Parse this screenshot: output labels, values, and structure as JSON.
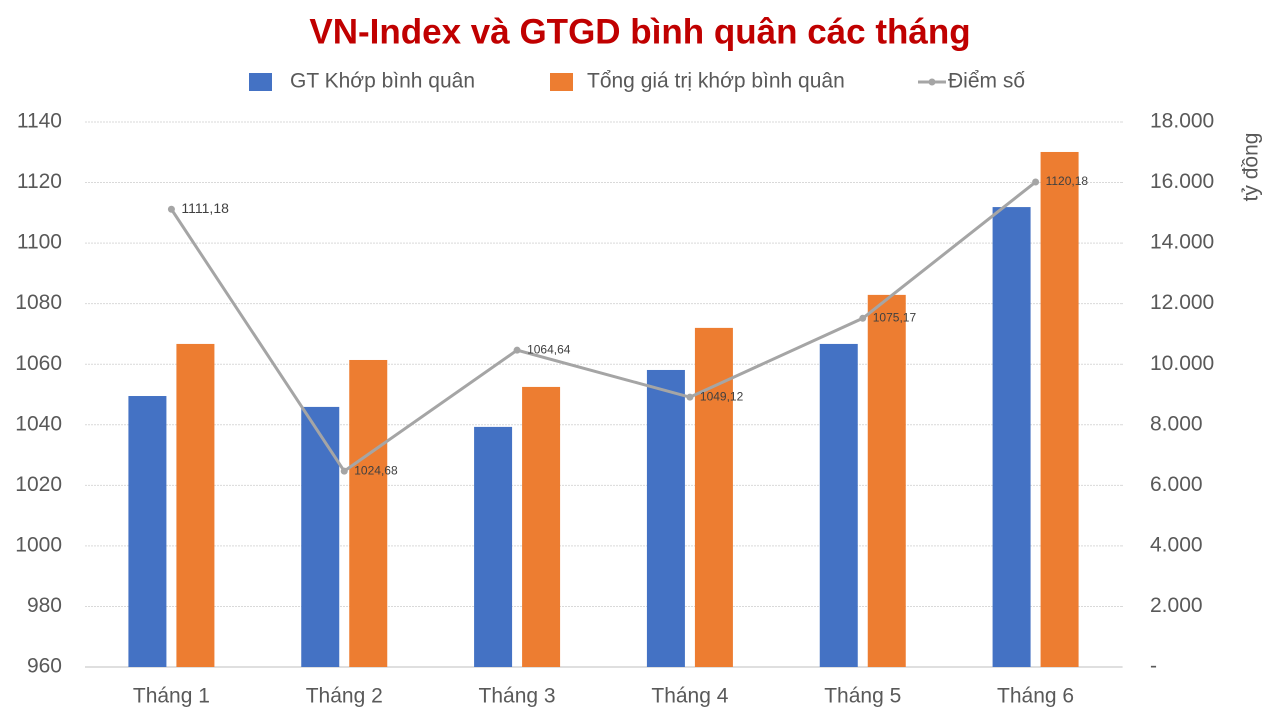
{
  "chart_data": {
    "type": "bar",
    "title": "VN-Index và GTGD bình quân các tháng",
    "y2_label": "tỷ đồng",
    "categories": [
      "Tháng 1",
      "Tháng 2",
      "Tháng 3",
      "Tháng 4",
      "Tháng 5",
      "Tháng 6"
    ],
    "series": [
      {
        "name": "GT Khớp bình quân",
        "type": "bar",
        "axis": "y2",
        "color": "#4472c4",
        "values": [
          8950,
          8590,
          7930,
          9810,
          10670,
          15190
        ]
      },
      {
        "name": "Tổng giá trị khớp bình quân",
        "type": "bar",
        "axis": "y2",
        "color": "#ed7d31",
        "values": [
          10670,
          10140,
          9250,
          11200,
          12290,
          17010
        ]
      },
      {
        "name": "Điểm số",
        "type": "line",
        "color": "#a5a5a5",
        "values": [
          1111.18,
          1024.68,
          1064.64,
          1049.12,
          1075.17,
          1120.18
        ],
        "value_labels": [
          "1111,18",
          "1024,68",
          "1064,64",
          "1049,12",
          "1075,17",
          "1120,18"
        ]
      }
    ],
    "ylim": [
      960,
      1140
    ],
    "yticks": [
      960,
      980,
      1000,
      1020,
      1040,
      1060,
      1080,
      1100,
      1120,
      1140
    ],
    "y2lim": [
      0,
      18000
    ],
    "y2ticks": [
      {
        "value": 0,
        "label": "-"
      },
      {
        "value": 2000,
        "label": "2.000"
      },
      {
        "value": 4000,
        "label": "4.000"
      },
      {
        "value": 6000,
        "label": "6.000"
      },
      {
        "value": 8000,
        "label": "8.000"
      },
      {
        "value": 10000,
        "label": "10.000"
      },
      {
        "value": 12000,
        "label": "12.000"
      },
      {
        "value": 14000,
        "label": "14.000"
      },
      {
        "value": 16000,
        "label": "16.000"
      },
      {
        "value": 18000,
        "label": "18.000"
      }
    ],
    "grid": true,
    "legend": "top"
  }
}
